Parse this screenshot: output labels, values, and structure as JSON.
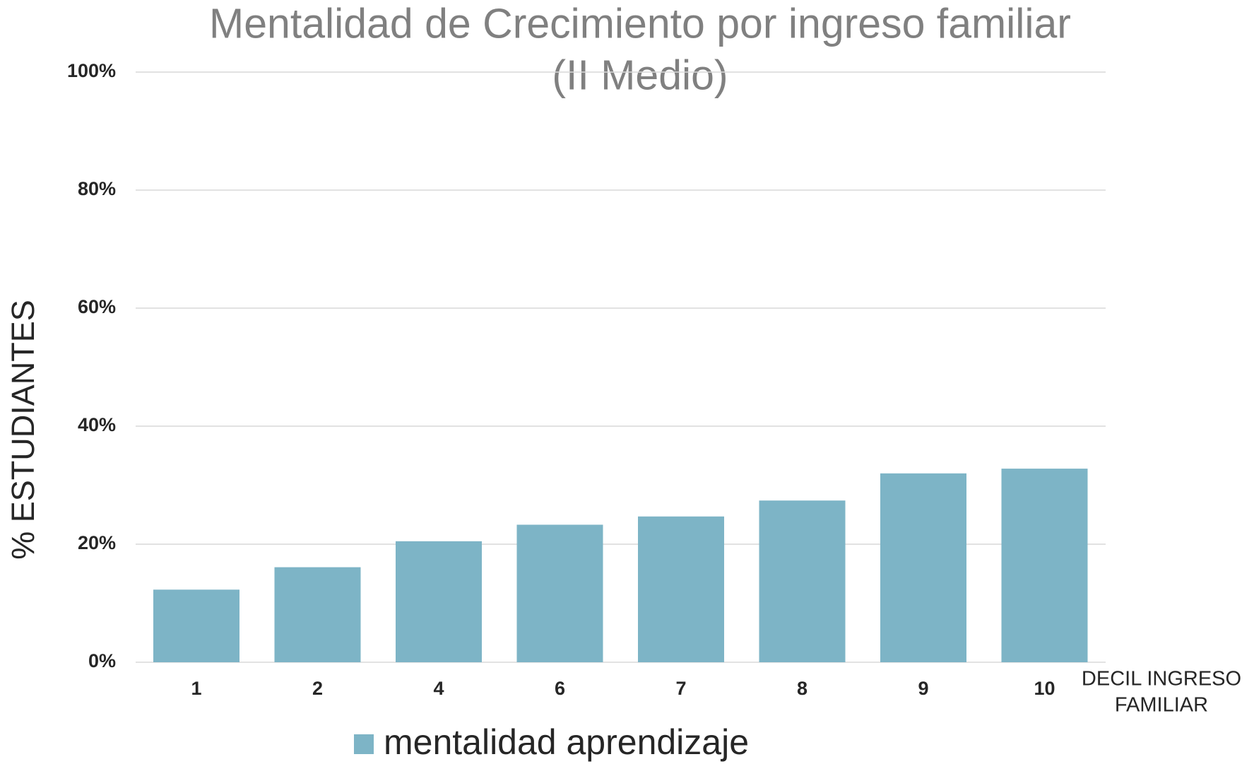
{
  "chart_data": {
    "type": "bar",
    "title": [
      "Mentalidad de Crecimiento por ingreso familiar",
      "(II Medio)"
    ],
    "ylabel": "% ESTUDIANTES",
    "xlabel": [
      "DECIL INGRESO",
      "FAMILIAR"
    ],
    "categories": [
      "1",
      "2",
      "4",
      "6",
      "7",
      "8",
      "9",
      "10"
    ],
    "series": [
      {
        "name": "mentalidad aprendizaje",
        "color": "#7db4c6",
        "values": [
          12.3,
          16.1,
          20.5,
          23.3,
          24.7,
          27.4,
          32.0,
          32.8
        ]
      }
    ],
    "ylim": [
      0,
      100
    ],
    "yticks": [
      {
        "value": 0,
        "label": "0%"
      },
      {
        "value": 20,
        "label": "20%"
      },
      {
        "value": 40,
        "label": "40%"
      },
      {
        "value": 60,
        "label": "60%"
      },
      {
        "value": 80,
        "label": "80%"
      },
      {
        "value": 100,
        "label": "100%"
      }
    ],
    "grid": true,
    "legend": "bottom"
  }
}
